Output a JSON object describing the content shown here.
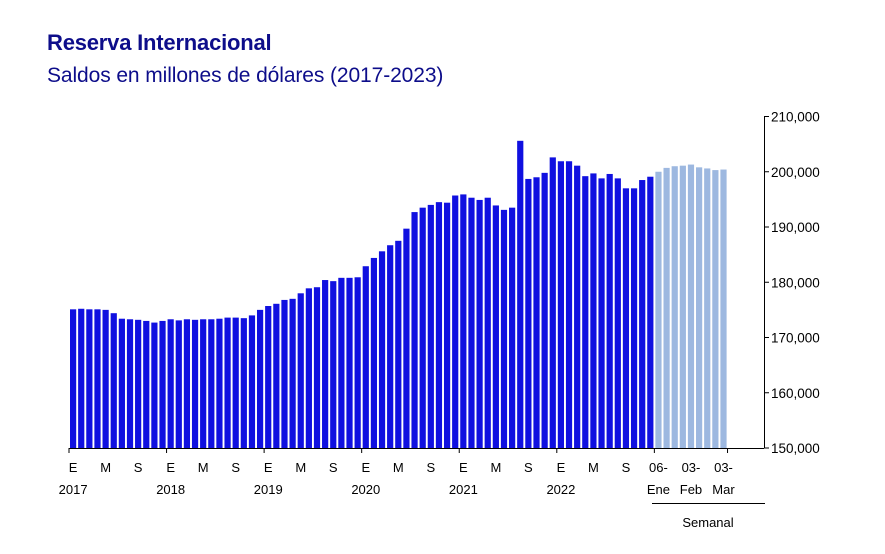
{
  "title": "Reserva Internacional",
  "subtitle": "Saldos en millones de dólares (2017-2023)",
  "chart_data": {
    "type": "bar",
    "title": "Reserva Internacional",
    "subtitle": "Saldos en millones de dólares (2017-2023)",
    "ylim": [
      150000,
      210000
    ],
    "yticks": [
      "150,000",
      "160,000",
      "170,000",
      "180,000",
      "190,000",
      "200,000",
      "210,000"
    ],
    "ytick_values": [
      150000,
      160000,
      170000,
      180000,
      190000,
      200000,
      210000
    ],
    "y_axis_side": "right",
    "grid": false,
    "colors": {
      "monthly": "#1010e0",
      "weekly": "#9db8e0",
      "text": "#0d0d8a"
    },
    "series": [
      {
        "frequency": "monthly",
        "values": [
          175100,
          175200,
          175100,
          175100,
          175000,
          174400,
          173400,
          173300,
          173200,
          173000,
          172700,
          173000,
          173300,
          173100,
          173300,
          173200,
          173300,
          173300,
          173400,
          173600,
          173600,
          173500,
          174000,
          175000,
          175700,
          176100,
          176800,
          177000,
          178000,
          178900,
          179100,
          180400,
          180200,
          180800,
          180800,
          180900,
          182900,
          184400,
          185600,
          186700,
          187500,
          189700,
          192700,
          193500,
          194000,
          194500,
          194400,
          195700,
          195900,
          195300,
          194900,
          195300,
          193900,
          193100,
          193500,
          205600,
          198700,
          199000,
          199800,
          202600,
          201900,
          201900,
          201100,
          199200,
          199700,
          198800,
          199600,
          198800,
          197000,
          197000,
          198500,
          199100
        ]
      },
      {
        "frequency": "weekly",
        "values": [
          200000,
          200700,
          201000,
          201100,
          201300,
          200800,
          200600,
          200300,
          200400
        ]
      }
    ],
    "x_ticks": [
      {
        "label": "E",
        "index": 0
      },
      {
        "label": "M",
        "index": 4
      },
      {
        "label": "S",
        "index": 8
      },
      {
        "label": "E",
        "index": 12
      },
      {
        "label": "M",
        "index": 16
      },
      {
        "label": "S",
        "index": 20
      },
      {
        "label": "E",
        "index": 24
      },
      {
        "label": "M",
        "index": 28
      },
      {
        "label": "S",
        "index": 32
      },
      {
        "label": "E",
        "index": 36
      },
      {
        "label": "M",
        "index": 40
      },
      {
        "label": "S",
        "index": 44
      },
      {
        "label": "E",
        "index": 48
      },
      {
        "label": "M",
        "index": 52
      },
      {
        "label": "S",
        "index": 56
      },
      {
        "label": "E",
        "index": 60
      },
      {
        "label": "M",
        "index": 64
      },
      {
        "label": "S",
        "index": 68
      }
    ],
    "year_labels": [
      {
        "label": "2017",
        "index": 0
      },
      {
        "label": "2018",
        "index": 12
      },
      {
        "label": "2019",
        "index": 24
      },
      {
        "label": "2020",
        "index": 36
      },
      {
        "label": "2021",
        "index": 48
      },
      {
        "label": "2022",
        "index": 60
      }
    ],
    "weekly_ticks": [
      {
        "day": "06-",
        "month": "Ene",
        "index": 0
      },
      {
        "day": "03-",
        "month": "Feb",
        "index": 4
      },
      {
        "day": "03-",
        "month": "Mar",
        "index": 8
      }
    ],
    "weekly_group_label": "Semanal"
  }
}
